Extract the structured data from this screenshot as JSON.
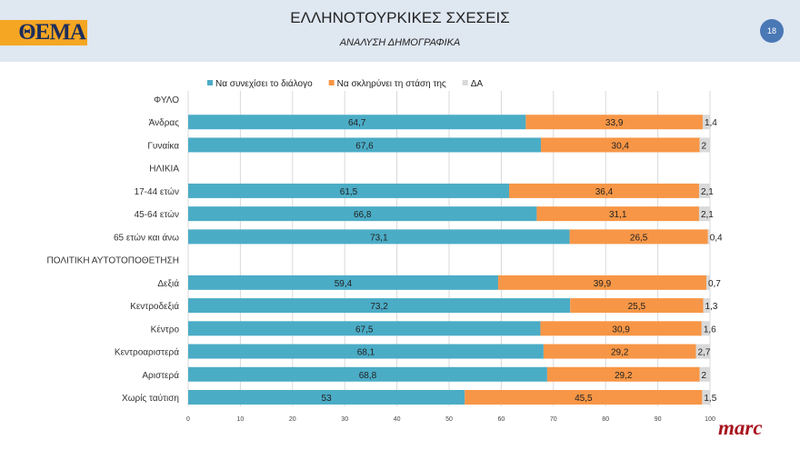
{
  "header": {
    "title": "ΕΛΛΗΝΟΤΟΥΡΚΙΚΕΣ ΣΧΕΣΕΙΣ",
    "subtitle": "ΑΝΑΛΥΣΗ ΔΗΜΟΓΡΑΦΙΚΑ",
    "page_number": "18",
    "logo_text": "ΘΕΜΑ",
    "brand": "marc"
  },
  "chart_data": {
    "type": "bar",
    "orientation": "horizontal",
    "stacked": true,
    "categories": [
      "ΦΥΛΟ",
      "Άνδρας",
      "Γυναίκα",
      "ΗΛΙΚΙΑ",
      "17-44 ετών",
      "45-64 ετών",
      "65 ετών και άνω",
      "ΠΟΛΙΤΙΚΗ ΑΥΤΟΤΟΠΟΘΕΤΗΣΗ",
      "Δεξιά",
      "Κεντροδεξιά",
      "Κέντρο",
      "Κεντροαριστερά",
      "Αριστερά",
      "Χωρίς ταύτιση"
    ],
    "series": [
      {
        "name": "Να συνεχίσει το διάλογο",
        "color": "#4bacc6",
        "values": [
          null,
          64.7,
          67.6,
          null,
          61.5,
          66.8,
          73.1,
          null,
          59.4,
          73.2,
          67.5,
          68.1,
          68.8,
          53
        ]
      },
      {
        "name": "Να σκληρύνει τη στάση της",
        "color": "#f79646",
        "values": [
          null,
          33.9,
          30.4,
          null,
          36.4,
          31.1,
          26.5,
          null,
          39.9,
          25.5,
          30.9,
          29.2,
          29.2,
          45.5
        ]
      },
      {
        "name": "ΔΑ",
        "color": "#d9d9d9",
        "values": [
          null,
          1.4,
          2,
          null,
          2.1,
          2.1,
          0.4,
          null,
          0.7,
          1.3,
          1.6,
          2.7,
          2,
          1.5
        ]
      }
    ],
    "xlim": [
      0,
      100
    ],
    "xticks": [
      0,
      10,
      20,
      30,
      40,
      50,
      60,
      70,
      80,
      90,
      100
    ],
    "grid": true,
    "legend": "top"
  }
}
